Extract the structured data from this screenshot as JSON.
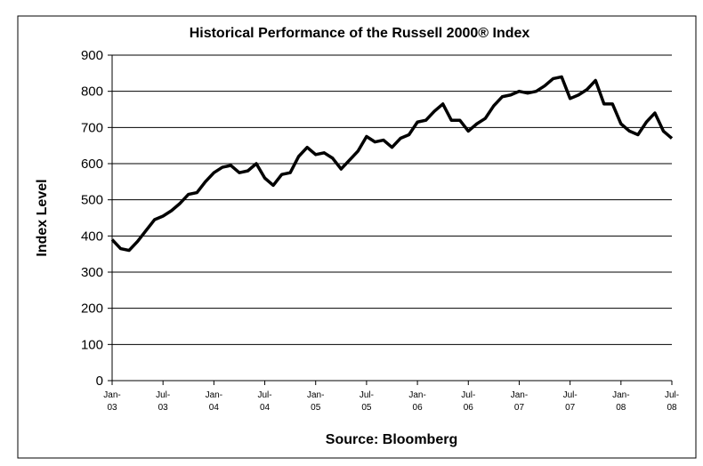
{
  "chart_data": {
    "type": "line",
    "title": "Historical Performance of the Russell 2000® Index",
    "y_label": "Index Level",
    "x_label": "Source: Bloomberg",
    "categories": [
      "Jan-03",
      null,
      null,
      null,
      null,
      null,
      "Jul-03",
      null,
      null,
      null,
      null,
      null,
      "Jan-04",
      null,
      null,
      null,
      null,
      null,
      "Jul-04",
      null,
      null,
      null,
      null,
      null,
      "Jan-05",
      null,
      null,
      null,
      null,
      null,
      "Jul-05",
      null,
      null,
      null,
      null,
      null,
      "Jan-06",
      null,
      null,
      null,
      null,
      null,
      "Jul-06",
      null,
      null,
      null,
      null,
      null,
      "Jan-07",
      null,
      null,
      null,
      null,
      null,
      "Jul-07",
      null,
      null,
      null,
      null,
      null,
      "Jan-08",
      null,
      null,
      null,
      null,
      null,
      "Jul-08"
    ],
    "series": [
      {
        "name": "Russell 2000",
        "color": "#000000",
        "values": [
          390,
          365,
          360,
          385,
          415,
          445,
          455,
          470,
          490,
          515,
          520,
          550,
          575,
          590,
          595,
          575,
          580,
          600,
          560,
          540,
          570,
          575,
          620,
          645,
          625,
          630,
          615,
          585,
          610,
          635,
          675,
          660,
          665,
          645,
          670,
          680,
          715,
          720,
          745,
          765,
          720,
          720,
          690,
          710,
          725,
          760,
          785,
          790,
          800,
          795,
          800,
          815,
          835,
          840,
          780,
          790,
          805,
          830,
          765,
          765,
          710,
          690,
          680,
          715,
          740,
          690,
          670
        ]
      }
    ],
    "ylim": [
      0,
      900
    ],
    "yticks": [
      0,
      100,
      200,
      300,
      400,
      500,
      600,
      700,
      800,
      900
    ],
    "grid": true
  }
}
